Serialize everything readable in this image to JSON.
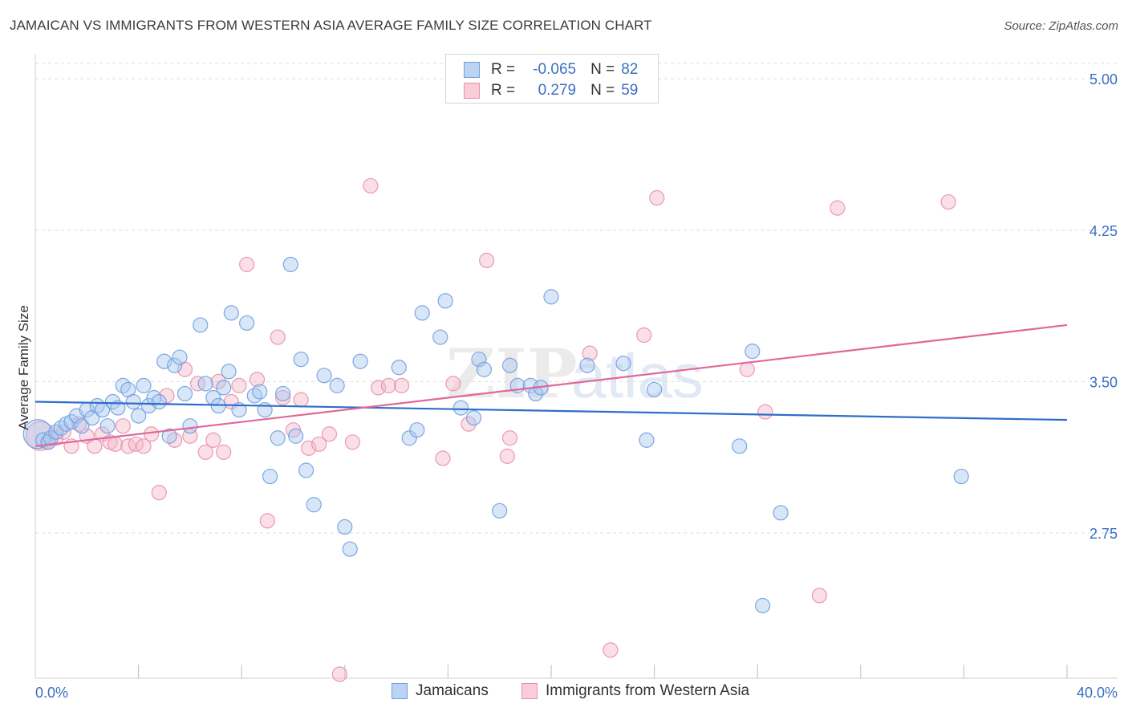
{
  "title": "JAMAICAN VS IMMIGRANTS FROM WESTERN ASIA AVERAGE FAMILY SIZE CORRELATION CHART",
  "source": "Source: ZipAtlas.com",
  "watermark": {
    "zip": "ZIP",
    "atlas": "atlas"
  },
  "colors": {
    "blue_fill": "#a9c8f0",
    "blue_stroke": "#6f9fe0",
    "blue_line": "#2f6ec8",
    "pink_fill": "#f5b8ca",
    "pink_stroke": "#e88fab",
    "pink_line": "#e0679a",
    "tick_text": "#3b70c2",
    "grid": "#dddddd"
  },
  "legend": {
    "rows": [
      {
        "r_label": "R =",
        "r_value": "-0.065",
        "n_label": "N =",
        "n_value": "82"
      },
      {
        "r_label": "R =",
        "r_value": "0.279",
        "n_label": "N =",
        "n_value": "59"
      }
    ]
  },
  "bottom_legend": [
    "Jamaicans",
    "Immigrants from Western Asia"
  ],
  "chart_data": {
    "type": "scatter",
    "title": "JAMAICAN VS IMMIGRANTS FROM WESTERN ASIA AVERAGE FAMILY SIZE CORRELATION CHART",
    "xlabel": "",
    "ylabel": "Average Family Size",
    "xlim": [
      0,
      40
    ],
    "ylim": [
      2.03,
      5.12
    ],
    "x_tick_labels": [
      "0.0%",
      "40.0%"
    ],
    "y_ticks": [
      2.75,
      3.5,
      4.25,
      5.0
    ],
    "y_tick_labels": [
      "2.75",
      "3.50",
      "4.25",
      "5.00"
    ],
    "grid": true,
    "series": [
      {
        "name": "Jamaicans",
        "r": -0.065,
        "n": 82,
        "trend": {
          "x": [
            0,
            40
          ],
          "y": [
            3.4,
            3.31
          ]
        },
        "points": [
          {
            "x": 0.1,
            "y": 3.24,
            "big": true
          },
          {
            "x": 0.3,
            "y": 3.21
          },
          {
            "x": 0.5,
            "y": 3.2
          },
          {
            "x": 0.6,
            "y": 3.22
          },
          {
            "x": 0.8,
            "y": 3.25
          },
          {
            "x": 1.0,
            "y": 3.27
          },
          {
            "x": 1.2,
            "y": 3.29
          },
          {
            "x": 1.4,
            "y": 3.3
          },
          {
            "x": 1.6,
            "y": 3.33
          },
          {
            "x": 1.8,
            "y": 3.28
          },
          {
            "x": 2.0,
            "y": 3.36
          },
          {
            "x": 2.2,
            "y": 3.32
          },
          {
            "x": 2.4,
            "y": 3.38
          },
          {
            "x": 2.6,
            "y": 3.36
          },
          {
            "x": 2.8,
            "y": 3.28
          },
          {
            "x": 3.0,
            "y": 3.4
          },
          {
            "x": 3.2,
            "y": 3.37
          },
          {
            "x": 3.4,
            "y": 3.48
          },
          {
            "x": 3.6,
            "y": 3.46
          },
          {
            "x": 3.8,
            "y": 3.4
          },
          {
            "x": 4.0,
            "y": 3.33
          },
          {
            "x": 4.2,
            "y": 3.48
          },
          {
            "x": 4.4,
            "y": 3.38
          },
          {
            "x": 4.6,
            "y": 3.42
          },
          {
            "x": 4.8,
            "y": 3.4
          },
          {
            "x": 5.0,
            "y": 3.6
          },
          {
            "x": 5.2,
            "y": 3.23
          },
          {
            "x": 5.4,
            "y": 3.58
          },
          {
            "x": 5.6,
            "y": 3.62
          },
          {
            "x": 5.8,
            "y": 3.44
          },
          {
            "x": 6.0,
            "y": 3.28
          },
          {
            "x": 6.4,
            "y": 3.78
          },
          {
            "x": 6.6,
            "y": 3.49
          },
          {
            "x": 6.9,
            "y": 3.42
          },
          {
            "x": 7.1,
            "y": 3.38
          },
          {
            "x": 7.3,
            "y": 3.47
          },
          {
            "x": 7.5,
            "y": 3.55
          },
          {
            "x": 7.6,
            "y": 3.84
          },
          {
            "x": 7.9,
            "y": 3.36
          },
          {
            "x": 8.2,
            "y": 3.79
          },
          {
            "x": 8.5,
            "y": 3.43
          },
          {
            "x": 8.7,
            "y": 3.45
          },
          {
            "x": 8.9,
            "y": 3.36
          },
          {
            "x": 9.1,
            "y": 3.03
          },
          {
            "x": 9.4,
            "y": 3.22
          },
          {
            "x": 9.6,
            "y": 3.44
          },
          {
            "x": 9.9,
            "y": 4.08
          },
          {
            "x": 10.1,
            "y": 3.23
          },
          {
            "x": 10.3,
            "y": 3.61
          },
          {
            "x": 10.5,
            "y": 3.06
          },
          {
            "x": 10.8,
            "y": 2.89
          },
          {
            "x": 11.2,
            "y": 3.53
          },
          {
            "x": 11.7,
            "y": 3.48
          },
          {
            "x": 12.0,
            "y": 2.78
          },
          {
            "x": 12.2,
            "y": 2.67
          },
          {
            "x": 12.6,
            "y": 3.6
          },
          {
            "x": 14.1,
            "y": 3.57
          },
          {
            "x": 14.5,
            "y": 3.22
          },
          {
            "x": 14.8,
            "y": 3.26
          },
          {
            "x": 15.0,
            "y": 3.84
          },
          {
            "x": 15.7,
            "y": 3.72
          },
          {
            "x": 15.9,
            "y": 3.9
          },
          {
            "x": 16.5,
            "y": 3.37
          },
          {
            "x": 17.0,
            "y": 3.32
          },
          {
            "x": 17.2,
            "y": 3.61
          },
          {
            "x": 17.4,
            "y": 3.56
          },
          {
            "x": 18.0,
            "y": 2.86
          },
          {
            "x": 18.4,
            "y": 3.58
          },
          {
            "x": 18.7,
            "y": 3.48
          },
          {
            "x": 19.2,
            "y": 3.48
          },
          {
            "x": 19.4,
            "y": 3.44
          },
          {
            "x": 19.6,
            "y": 3.47
          },
          {
            "x": 20.0,
            "y": 3.92
          },
          {
            "x": 21.4,
            "y": 3.58
          },
          {
            "x": 22.8,
            "y": 3.59
          },
          {
            "x": 23.7,
            "y": 3.21
          },
          {
            "x": 24.0,
            "y": 3.46
          },
          {
            "x": 27.3,
            "y": 3.18
          },
          {
            "x": 27.8,
            "y": 3.65
          },
          {
            "x": 28.2,
            "y": 2.39
          },
          {
            "x": 28.9,
            "y": 2.85
          },
          {
            "x": 35.9,
            "y": 3.03
          }
        ]
      },
      {
        "name": "Immigrants from Western Asia",
        "r": 0.279,
        "n": 59,
        "trend": {
          "x": [
            0,
            40
          ],
          "y": [
            3.18,
            3.78
          ]
        },
        "points": [
          {
            "x": 0.2,
            "y": 3.23,
            "big": true
          },
          {
            "x": 0.5,
            "y": 3.2
          },
          {
            "x": 0.8,
            "y": 3.22
          },
          {
            "x": 1.1,
            "y": 3.25
          },
          {
            "x": 1.4,
            "y": 3.18
          },
          {
            "x": 1.7,
            "y": 3.29
          },
          {
            "x": 2.0,
            "y": 3.23
          },
          {
            "x": 2.3,
            "y": 3.18
          },
          {
            "x": 2.6,
            "y": 3.24
          },
          {
            "x": 2.9,
            "y": 3.2
          },
          {
            "x": 3.1,
            "y": 3.19
          },
          {
            "x": 3.4,
            "y": 3.28
          },
          {
            "x": 3.6,
            "y": 3.18
          },
          {
            "x": 3.9,
            "y": 3.19
          },
          {
            "x": 4.2,
            "y": 3.18
          },
          {
            "x": 4.5,
            "y": 3.24
          },
          {
            "x": 4.8,
            "y": 2.95
          },
          {
            "x": 5.1,
            "y": 3.43
          },
          {
            "x": 5.4,
            "y": 3.21
          },
          {
            "x": 5.8,
            "y": 3.56
          },
          {
            "x": 6.0,
            "y": 3.23
          },
          {
            "x": 6.3,
            "y": 3.49
          },
          {
            "x": 6.6,
            "y": 3.15
          },
          {
            "x": 6.9,
            "y": 3.21
          },
          {
            "x": 7.1,
            "y": 3.5
          },
          {
            "x": 7.3,
            "y": 3.15
          },
          {
            "x": 7.6,
            "y": 3.4
          },
          {
            "x": 7.9,
            "y": 3.48
          },
          {
            "x": 8.2,
            "y": 4.08
          },
          {
            "x": 8.6,
            "y": 3.51
          },
          {
            "x": 9.0,
            "y": 2.81
          },
          {
            "x": 9.4,
            "y": 3.72
          },
          {
            "x": 9.6,
            "y": 3.42
          },
          {
            "x": 10.0,
            "y": 3.26
          },
          {
            "x": 10.3,
            "y": 3.41
          },
          {
            "x": 10.6,
            "y": 3.17
          },
          {
            "x": 11.0,
            "y": 3.19
          },
          {
            "x": 11.4,
            "y": 3.24
          },
          {
            "x": 11.8,
            "y": 2.05
          },
          {
            "x": 12.3,
            "y": 3.2
          },
          {
            "x": 13.0,
            "y": 4.47
          },
          {
            "x": 13.3,
            "y": 3.47
          },
          {
            "x": 13.7,
            "y": 3.48
          },
          {
            "x": 14.2,
            "y": 3.48
          },
          {
            "x": 15.8,
            "y": 3.12
          },
          {
            "x": 16.2,
            "y": 3.49
          },
          {
            "x": 16.8,
            "y": 3.29
          },
          {
            "x": 17.5,
            "y": 4.1
          },
          {
            "x": 18.3,
            "y": 3.13
          },
          {
            "x": 18.4,
            "y": 3.22
          },
          {
            "x": 21.5,
            "y": 3.64
          },
          {
            "x": 22.3,
            "y": 2.17
          },
          {
            "x": 23.6,
            "y": 3.73
          },
          {
            "x": 24.1,
            "y": 4.41
          },
          {
            "x": 28.3,
            "y": 3.35
          },
          {
            "x": 30.4,
            "y": 2.44
          },
          {
            "x": 31.1,
            "y": 4.36
          },
          {
            "x": 35.4,
            "y": 4.39
          },
          {
            "x": 27.6,
            "y": 3.56
          }
        ]
      }
    ]
  }
}
